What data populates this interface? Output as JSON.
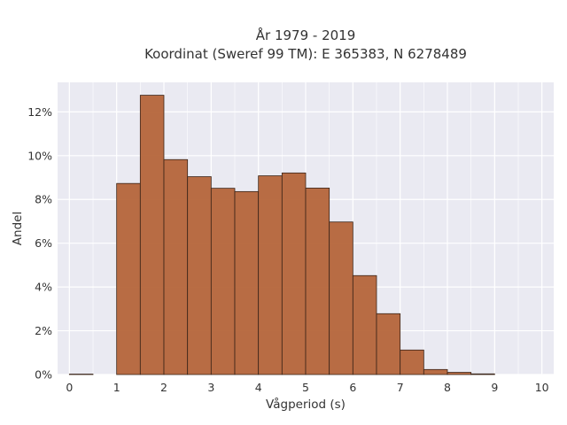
{
  "chart_data": {
    "type": "bar",
    "title": "År 1979 - 2019",
    "subtitle": "Koordinat (Sweref 99 TM): E 365383, N 6278489",
    "xlabel": "Vågperiod (s)",
    "ylabel": "Andel",
    "bin_width": 0.5,
    "bins": [
      {
        "x0": 0.0,
        "x1": 0.5,
        "value": 0.0002
      },
      {
        "x0": 0.5,
        "x1": 1.0,
        "value": 0.0
      },
      {
        "x0": 1.0,
        "x1": 1.5,
        "value": 0.0873
      },
      {
        "x0": 1.5,
        "x1": 2.0,
        "value": 0.1276
      },
      {
        "x0": 2.0,
        "x1": 2.5,
        "value": 0.0982
      },
      {
        "x0": 2.5,
        "x1": 3.0,
        "value": 0.0904
      },
      {
        "x0": 3.0,
        "x1": 3.5,
        "value": 0.0851
      },
      {
        "x0": 3.5,
        "x1": 4.0,
        "value": 0.0836
      },
      {
        "x0": 4.0,
        "x1": 4.5,
        "value": 0.0908
      },
      {
        "x0": 4.5,
        "x1": 5.0,
        "value": 0.0921
      },
      {
        "x0": 5.0,
        "x1": 5.5,
        "value": 0.0852
      },
      {
        "x0": 5.5,
        "x1": 6.0,
        "value": 0.0697
      },
      {
        "x0": 6.0,
        "x1": 6.5,
        "value": 0.0452
      },
      {
        "x0": 6.5,
        "x1": 7.0,
        "value": 0.0278
      },
      {
        "x0": 7.0,
        "x1": 7.5,
        "value": 0.0112
      },
      {
        "x0": 7.5,
        "x1": 8.0,
        "value": 0.0023
      },
      {
        "x0": 8.0,
        "x1": 8.5,
        "value": 0.001
      },
      {
        "x0": 8.5,
        "x1": 9.0,
        "value": 0.0003
      }
    ],
    "xlim": [
      -0.25,
      10.25
    ],
    "ylim": [
      0,
      0.1335
    ],
    "xticks": [
      0,
      1,
      2,
      3,
      4,
      5,
      6,
      7,
      8,
      9,
      10
    ],
    "xtick_labels": [
      "0",
      "1",
      "2",
      "3",
      "4",
      "5",
      "6",
      "7",
      "8",
      "9",
      "10"
    ],
    "yticks": [
      0,
      0.02,
      0.04,
      0.06,
      0.08,
      0.1,
      0.12
    ],
    "ytick_labels": [
      "0%",
      "2%",
      "4%",
      "6%",
      "8%",
      "10%",
      "12%"
    ],
    "grid": true,
    "legend": "none",
    "colors": {
      "bar_fill": "#b5653a",
      "bar_edge": "#3a2418",
      "plot_background": "#eaeaf2",
      "grid": "#ffffff"
    }
  }
}
